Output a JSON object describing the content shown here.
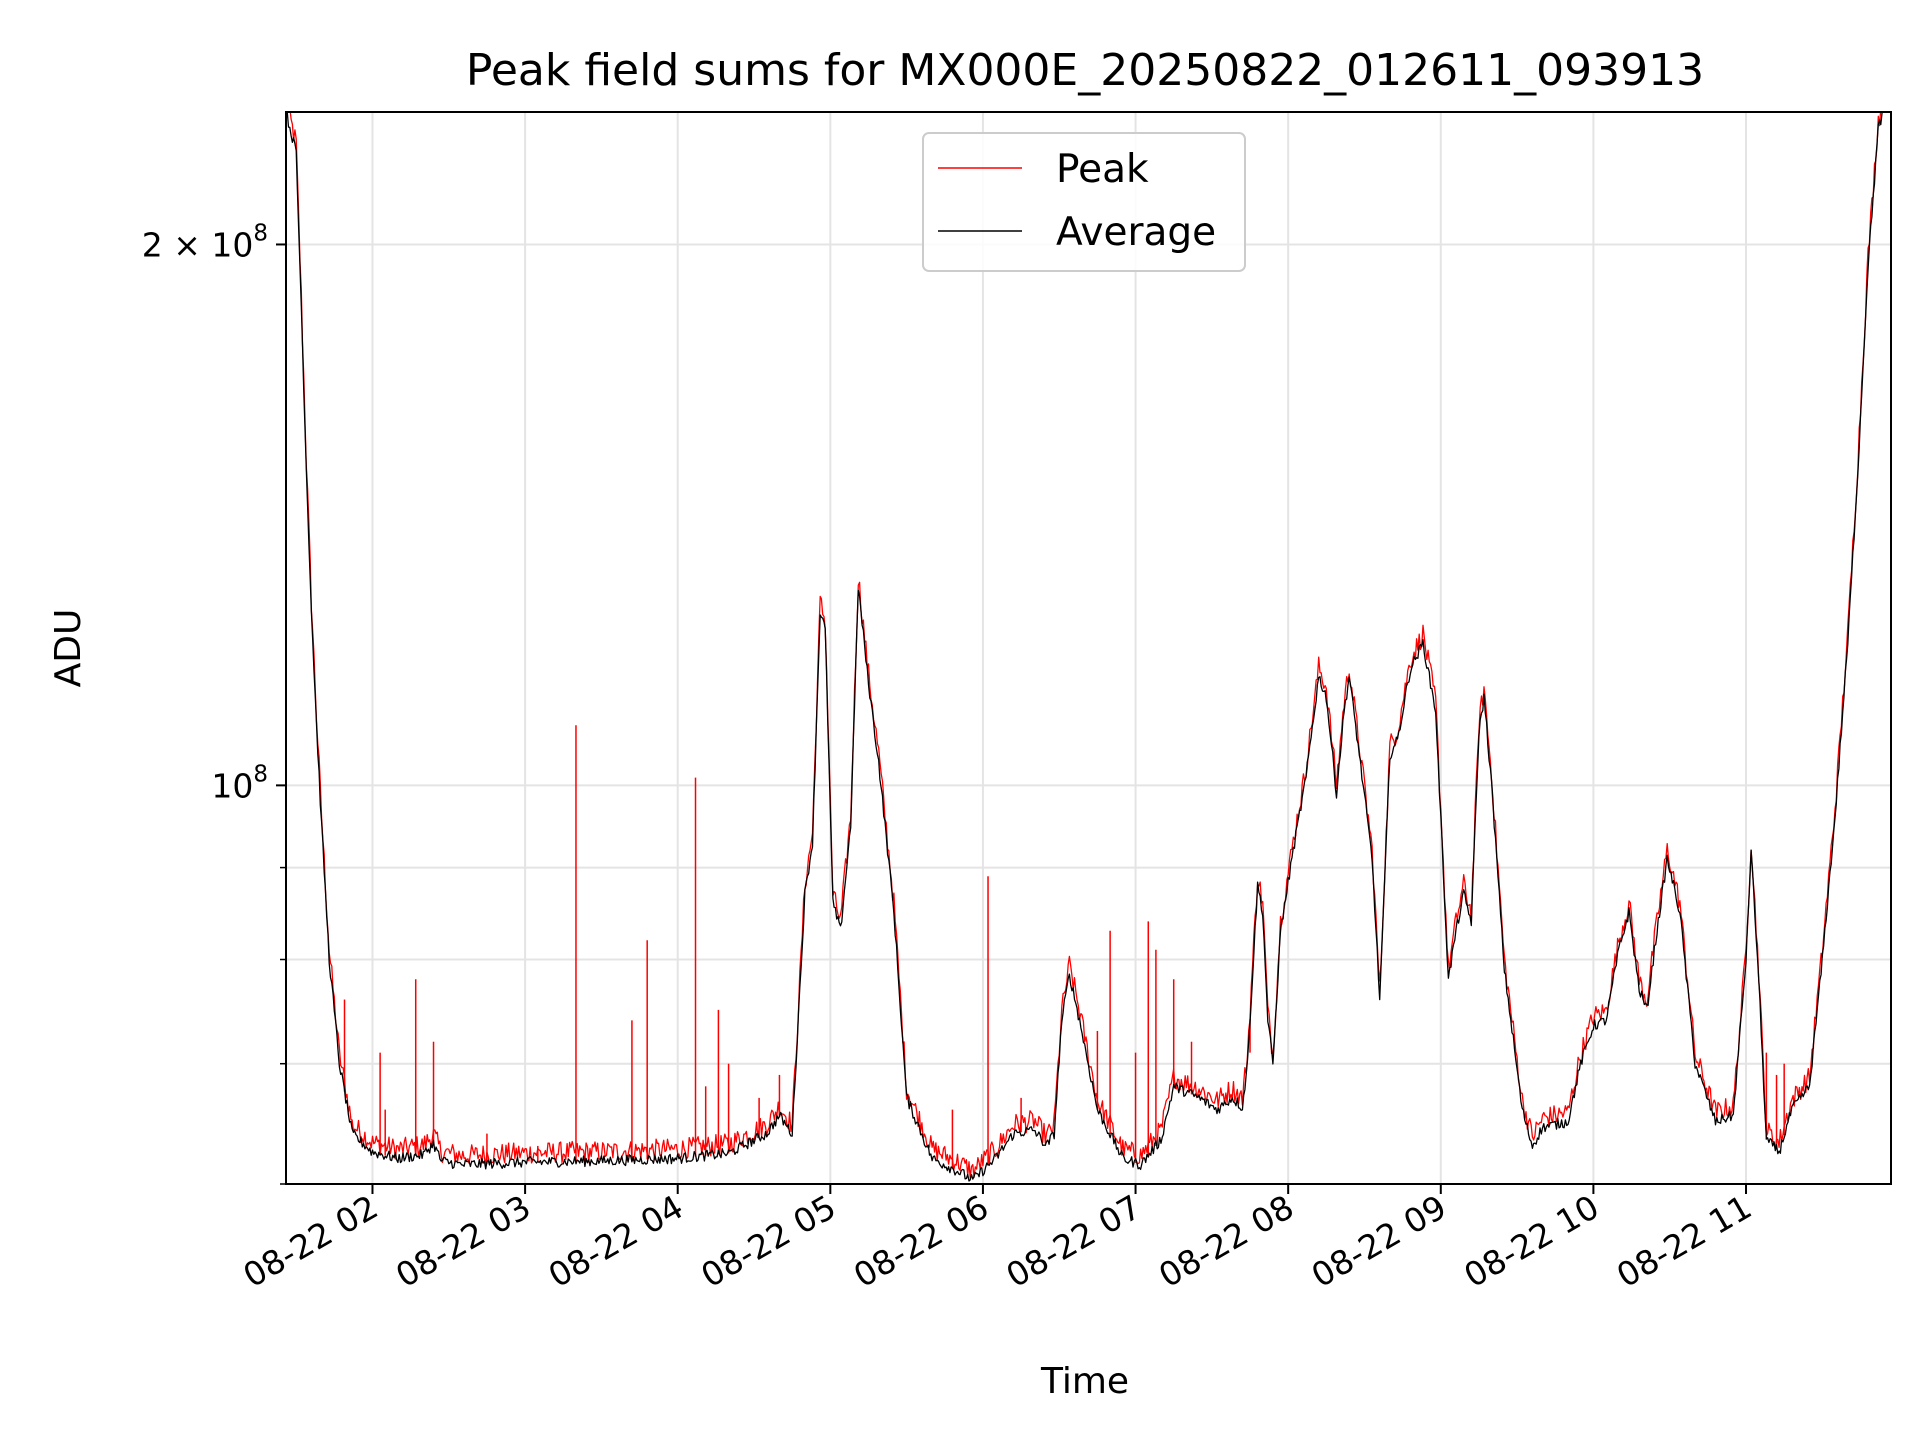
{
  "chart_data": {
    "type": "line",
    "title": "Peak field sums for MX000E_20250822_012611_093913",
    "xlabel": "Time",
    "ylabel": "ADU",
    "y_scale": "log",
    "grid": true,
    "legend_position": "top-center",
    "xlim": [
      "2025-08-22 01:26",
      "2025-08-22 11:57"
    ],
    "ylim": [
      60000000,
      237000000
    ],
    "x_ticks": [
      {
        "x": "2025-08-22 02:00",
        "label": "08-22 02"
      },
      {
        "x": "2025-08-22 03:00",
        "label": "08-22 03"
      },
      {
        "x": "2025-08-22 04:00",
        "label": "08-22 04"
      },
      {
        "x": "2025-08-22 05:00",
        "label": "08-22 05"
      },
      {
        "x": "2025-08-22 06:00",
        "label": "08-22 06"
      },
      {
        "x": "2025-08-22 07:00",
        "label": "08-22 07"
      },
      {
        "x": "2025-08-22 08:00",
        "label": "08-22 08"
      },
      {
        "x": "2025-08-22 09:00",
        "label": "08-22 09"
      },
      {
        "x": "2025-08-22 10:00",
        "label": "08-22 10"
      },
      {
        "x": "2025-08-22 11:00",
        "label": "08-22 11"
      }
    ],
    "y_major_ticks": [
      {
        "y": 100000000,
        "base": "10",
        "exp": "8",
        "coef": ""
      },
      {
        "y": 200000000,
        "base": "10",
        "exp": "8",
        "coef": "2 × "
      }
    ],
    "y_minor_ticks": [
      60000000,
      70000000,
      80000000,
      90000000
    ],
    "series": [
      {
        "name": "Average",
        "color": "#000000",
        "points": [
          [
            "2025-08-22 01:26",
            237000000
          ],
          [
            "2025-08-22 01:30",
            225000000
          ],
          [
            "2025-08-22 01:32",
            185000000
          ],
          [
            "2025-08-22 01:34",
            150000000
          ],
          [
            "2025-08-22 01:36",
            125000000
          ],
          [
            "2025-08-22 01:38",
            108000000
          ],
          [
            "2025-08-22 01:40",
            95000000
          ],
          [
            "2025-08-22 01:43",
            80000000
          ],
          [
            "2025-08-22 01:47",
            70000000
          ],
          [
            "2025-08-22 01:52",
            64000000
          ],
          [
            "2025-08-22 02:00",
            62500000
          ],
          [
            "2025-08-22 02:10",
            62000000
          ],
          [
            "2025-08-22 02:20",
            62300000
          ],
          [
            "2025-08-22 02:24",
            63200000
          ],
          [
            "2025-08-22 02:27",
            61800000
          ],
          [
            "2025-08-22 02:35",
            61500000
          ],
          [
            "2025-08-22 03:00",
            61700000
          ],
          [
            "2025-08-22 03:30",
            61800000
          ],
          [
            "2025-08-22 04:00",
            62000000
          ],
          [
            "2025-08-22 04:20",
            62400000
          ],
          [
            "2025-08-22 04:35",
            64000000
          ],
          [
            "2025-08-22 04:40",
            65500000
          ],
          [
            "2025-08-22 04:45",
            64000000
          ],
          [
            "2025-08-22 04:50",
            87000000
          ],
          [
            "2025-08-22 04:53",
            93000000
          ],
          [
            "2025-08-22 04:56",
            125000000
          ],
          [
            "2025-08-22 04:58",
            122000000
          ],
          [
            "2025-08-22 05:01",
            86000000
          ],
          [
            "2025-08-22 05:04",
            83000000
          ],
          [
            "2025-08-22 05:08",
            95000000
          ],
          [
            "2025-08-22 05:11",
            129000000
          ],
          [
            "2025-08-22 05:15",
            114000000
          ],
          [
            "2025-08-22 05:19",
            103000000
          ],
          [
            "2025-08-22 05:25",
            85000000
          ],
          [
            "2025-08-22 05:30",
            67000000
          ],
          [
            "2025-08-22 05:40",
            62000000
          ],
          [
            "2025-08-22 05:50",
            61000000
          ],
          [
            "2025-08-22 05:56",
            60300000
          ],
          [
            "2025-08-22 06:05",
            62000000
          ],
          [
            "2025-08-22 06:12",
            64000000
          ],
          [
            "2025-08-22 06:20",
            64300000
          ],
          [
            "2025-08-22 06:25",
            63000000
          ],
          [
            "2025-08-22 06:28",
            64000000
          ],
          [
            "2025-08-22 06:31",
            74000000
          ],
          [
            "2025-08-22 06:34",
            78500000
          ],
          [
            "2025-08-22 06:38",
            74000000
          ],
          [
            "2025-08-22 06:45",
            66000000
          ],
          [
            "2025-08-22 06:55",
            62000000
          ],
          [
            "2025-08-22 07:02",
            61500000
          ],
          [
            "2025-08-22 07:10",
            63500000
          ],
          [
            "2025-08-22 07:15",
            68000000
          ],
          [
            "2025-08-22 07:25",
            67000000
          ],
          [
            "2025-08-22 07:32",
            66000000
          ],
          [
            "2025-08-22 07:38",
            67000000
          ],
          [
            "2025-08-22 07:42",
            66200000
          ],
          [
            "2025-08-22 07:44",
            70000000
          ],
          [
            "2025-08-22 07:48",
            88000000
          ],
          [
            "2025-08-22 07:50",
            85000000
          ],
          [
            "2025-08-22 07:52",
            74000000
          ],
          [
            "2025-08-22 07:54",
            70000000
          ],
          [
            "2025-08-22 07:57",
            83000000
          ],
          [
            "2025-08-22 08:02",
            92000000
          ],
          [
            "2025-08-22 08:07",
            101000000
          ],
          [
            "2025-08-22 08:12",
            115000000
          ],
          [
            "2025-08-22 08:15",
            112000000
          ],
          [
            "2025-08-22 08:19",
            99000000
          ],
          [
            "2025-08-22 08:22",
            110000000
          ],
          [
            "2025-08-22 08:24",
            115000000
          ],
          [
            "2025-08-22 08:28",
            104000000
          ],
          [
            "2025-08-22 08:33",
            91000000
          ],
          [
            "2025-08-22 08:36",
            76000000
          ],
          [
            "2025-08-22 08:40",
            104000000
          ],
          [
            "2025-08-22 08:43",
            106000000
          ],
          [
            "2025-08-22 08:48",
            116000000
          ],
          [
            "2025-08-22 08:53",
            120000000
          ],
          [
            "2025-08-22 08:58",
            110000000
          ],
          [
            "2025-08-22 09:03",
            78000000
          ],
          [
            "2025-08-22 09:06",
            83000000
          ],
          [
            "2025-08-22 09:09",
            87000000
          ],
          [
            "2025-08-22 09:12",
            84000000
          ],
          [
            "2025-08-22 09:15",
            107000000
          ],
          [
            "2025-08-22 09:17",
            112000000
          ],
          [
            "2025-08-22 09:20",
            100000000
          ],
          [
            "2025-08-22 09:25",
            79000000
          ],
          [
            "2025-08-22 09:32",
            66000000
          ],
          [
            "2025-08-22 09:36",
            63000000
          ],
          [
            "2025-08-22 09:40",
            64500000
          ],
          [
            "2025-08-22 09:50",
            65000000
          ],
          [
            "2025-08-22 09:55",
            70000000
          ],
          [
            "2025-08-22 10:00",
            73500000
          ],
          [
            "2025-08-22 10:05",
            74000000
          ],
          [
            "2025-08-22 10:10",
            81000000
          ],
          [
            "2025-08-22 10:14",
            85000000
          ],
          [
            "2025-08-22 10:18",
            77000000
          ],
          [
            "2025-08-22 10:21",
            75000000
          ],
          [
            "2025-08-22 10:25",
            83000000
          ],
          [
            "2025-08-22 10:29",
            91000000
          ],
          [
            "2025-08-22 10:34",
            85000000
          ],
          [
            "2025-08-22 10:40",
            70000000
          ],
          [
            "2025-08-22 10:48",
            65000000
          ],
          [
            "2025-08-22 10:55",
            65500000
          ],
          [
            "2025-08-22 11:00",
            80000000
          ],
          [
            "2025-08-22 11:02",
            92000000
          ],
          [
            "2025-08-22 11:05",
            78000000
          ],
          [
            "2025-08-22 11:08",
            63500000
          ],
          [
            "2025-08-22 11:13",
            62500000
          ],
          [
            "2025-08-22 11:18",
            66000000
          ],
          [
            "2025-08-22 11:25",
            68000000
          ],
          [
            "2025-08-22 11:30",
            80000000
          ],
          [
            "2025-08-22 11:35",
            96000000
          ],
          [
            "2025-08-22 11:40",
            120000000
          ],
          [
            "2025-08-22 11:44",
            150000000
          ],
          [
            "2025-08-22 11:48",
            195000000
          ],
          [
            "2025-08-22 11:52",
            232000000
          ],
          [
            "2025-08-22 11:54",
            237000000
          ]
        ]
      },
      {
        "name": "Peak",
        "color": "#ff0000",
        "offset_ratio": 1.012,
        "spikes": [
          [
            "2025-08-22 01:49",
            76000000
          ],
          [
            "2025-08-22 02:03",
            71000000
          ],
          [
            "2025-08-22 02:05",
            66000000
          ],
          [
            "2025-08-22 02:17",
            78000000
          ],
          [
            "2025-08-22 02:24",
            72000000
          ],
          [
            "2025-08-22 02:45",
            64000000
          ],
          [
            "2025-08-22 03:05",
            63000000
          ],
          [
            "2025-08-22 03:20",
            108000000
          ],
          [
            "2025-08-22 03:42",
            74000000
          ],
          [
            "2025-08-22 03:48",
            82000000
          ],
          [
            "2025-08-22 04:07",
            101000000
          ],
          [
            "2025-08-22 04:11",
            68000000
          ],
          [
            "2025-08-22 04:16",
            75000000
          ],
          [
            "2025-08-22 04:20",
            70000000
          ],
          [
            "2025-08-22 04:32",
            67000000
          ],
          [
            "2025-08-22 04:40",
            69000000
          ],
          [
            "2025-08-22 05:48",
            66000000
          ],
          [
            "2025-08-22 06:02",
            89000000
          ],
          [
            "2025-08-22 06:15",
            67000000
          ],
          [
            "2025-08-22 06:45",
            73000000
          ],
          [
            "2025-08-22 06:50",
            83000000
          ],
          [
            "2025-08-22 07:00",
            71000000
          ],
          [
            "2025-08-22 07:05",
            84000000
          ],
          [
            "2025-08-22 07:08",
            81000000
          ],
          [
            "2025-08-22 07:15",
            78000000
          ],
          [
            "2025-08-22 07:22",
            72000000
          ],
          [
            "2025-08-22 07:45",
            71000000
          ],
          [
            "2025-08-22 11:08",
            71000000
          ],
          [
            "2025-08-22 11:12",
            69000000
          ],
          [
            "2025-08-22 11:15",
            70000000
          ]
        ]
      }
    ]
  }
}
